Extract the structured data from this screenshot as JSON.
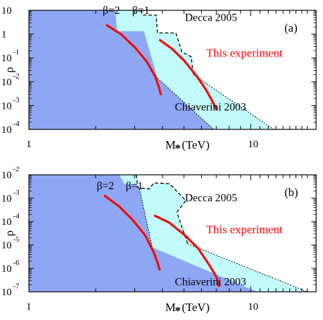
{
  "colors": {
    "excluded_blue": "#8ea7f5",
    "excluded_cyan": "#c2fbfb",
    "experiment": "#ff0000",
    "boundary": "#000000"
  },
  "chart_data": [
    {
      "type": "area",
      "panel_tag": "(a)",
      "xlabel_main": "M",
      "xlabel_sub": "*",
      "xlabel_unit": "(TeV)",
      "ylabel": "ρ",
      "x_scale": "log",
      "y_scale": "log",
      "xlim": [
        1,
        18
      ],
      "ylim_exponents": [
        -4,
        1
      ],
      "x_ticks": [
        {
          "value": 1,
          "label": "1"
        },
        {
          "value": 10,
          "label": "10"
        }
      ],
      "y_ticks": [
        {
          "exp": 1,
          "base": "10",
          "sup": ""
        },
        {
          "exp": 0,
          "base": "1",
          "sup": ""
        },
        {
          "exp": -1,
          "base": "10",
          "sup": "-1"
        },
        {
          "exp": -2,
          "base": "10",
          "sup": "-2"
        },
        {
          "exp": -3,
          "base": "10",
          "sup": "-3"
        },
        {
          "exp": -4,
          "base": "10",
          "sup": "-4"
        }
      ],
      "regions": [
        {
          "name": "Chiaverini 2003",
          "label": "Chiaverini 2003",
          "color": "#8ea7f5",
          "boundary": [
            [
              1,
              1
            ],
            [
              2.45,
              1
            ],
            [
              2.5,
              0.12
            ],
            [
              3.3,
              0.12
            ],
            [
              3.8,
              -1.85
            ],
            [
              6.8,
              -4
            ],
            [
              1,
              -4
            ]
          ]
        },
        {
          "name": "Decca 2005",
          "label": "Decca 2005",
          "color": "#c2fbfb",
          "boundary": [
            [
              2.45,
              1
            ],
            [
              3.2,
              1
            ],
            [
              3.25,
              0.8
            ],
            [
              3.75,
              0.8
            ],
            [
              3.8,
              0.05
            ],
            [
              4.6,
              0.05
            ],
            [
              4.9,
              -0.75
            ],
            [
              5.4,
              -0.95
            ],
            [
              5.5,
              -1.7
            ],
            [
              12.7,
              -4
            ],
            [
              6.8,
              -4
            ],
            [
              3.8,
              -1.85
            ],
            [
              3.3,
              0.12
            ],
            [
              2.5,
              0.12
            ]
          ]
        }
      ],
      "series": [
        {
          "name": "This experiment",
          "x": [
            2.25,
            2.6,
            3.0,
            3.4,
            3.7,
            3.85,
            3.93
          ],
          "y": [
            0.37,
            0.0,
            -0.55,
            -1.15,
            -1.75,
            -2.2,
            -2.52
          ]
        },
        {
          "name": "",
          "x": [
            3.9,
            4.4,
            5.0,
            5.7,
            6.3,
            6.75,
            7.0
          ],
          "y": [
            -0.25,
            -0.6,
            -1.1,
            -1.75,
            -2.35,
            -2.85,
            -3.15
          ]
        }
      ],
      "annotations": [
        {
          "text": "β=2",
          "x": 2.15,
          "y": 0.85
        },
        {
          "text": "β=1",
          "x": 2.92,
          "y": 0.85
        },
        {
          "text": "Decca 2005",
          "x": 5.05,
          "y": 0.55
        },
        {
          "text": "This experiment",
          "x": 6.3,
          "y": -0.95,
          "color": "#ff0000"
        },
        {
          "text": "Chiaverini 2003",
          "x": 4.55,
          "y": -3.2
        }
      ]
    },
    {
      "type": "area",
      "panel_tag": "(b)",
      "xlabel_main": "M",
      "xlabel_sub": "*",
      "xlabel_unit": "(TeV)",
      "ylabel": "ρ",
      "x_scale": "log",
      "y_scale": "log",
      "xlim": [
        1,
        18
      ],
      "ylim_exponents": [
        -7,
        -2
      ],
      "x_ticks": [
        {
          "value": 1,
          "label": "1"
        },
        {
          "value": 10,
          "label": "10"
        }
      ],
      "y_ticks": [
        {
          "exp": -2,
          "base": "10",
          "sup": "-2"
        },
        {
          "exp": -3,
          "base": "10",
          "sup": "-3"
        },
        {
          "exp": -4,
          "base": "10",
          "sup": "-4"
        },
        {
          "exp": -5,
          "base": "10",
          "sup": "-5"
        },
        {
          "exp": -6,
          "base": "10",
          "sup": "-6"
        },
        {
          "exp": -7,
          "base": "10",
          "sup": "-7"
        }
      ],
      "regions": [
        {
          "name": "Chiaverini 2003",
          "label": "Chiaverini 2003",
          "color": "#8ea7f5",
          "boundary": [
            [
              1,
              -2
            ],
            [
              2.55,
              -2
            ],
            [
              2.7,
              -2.4
            ],
            [
              3.05,
              -2.4
            ],
            [
              3.15,
              -2.6
            ],
            [
              3.6,
              -5.1
            ],
            [
              10.7,
              -7
            ],
            [
              1,
              -7
            ]
          ]
        },
        {
          "name": "Decca 2005",
          "label": "Decca 2005",
          "color": "#c2fbfb",
          "boundary": [
            [
              2.55,
              -2
            ],
            [
              3.05,
              -2
            ],
            [
              3.1,
              -2.55
            ],
            [
              3.5,
              -2.6
            ],
            [
              3.65,
              -2.35
            ],
            [
              4.3,
              -2.38
            ],
            [
              5.1,
              -3.1
            ],
            [
              4.65,
              -3.6
            ],
            [
              5.2,
              -4.95
            ],
            [
              18,
              -7
            ],
            [
              10.7,
              -7
            ],
            [
              3.6,
              -5.1
            ],
            [
              3.15,
              -2.6
            ],
            [
              3.05,
              -2.4
            ],
            [
              2.7,
              -2.4
            ]
          ]
        }
      ],
      "series": [
        {
          "name": "This experiment",
          "x": [
            2.2,
            2.55,
            2.95,
            3.35,
            3.65,
            3.8,
            3.88
          ],
          "y": [
            -2.9,
            -3.35,
            -3.95,
            -4.6,
            -5.3,
            -5.75,
            -6.05
          ]
        },
        {
          "name": "",
          "x": [
            3.7,
            4.3,
            5.0,
            5.8,
            6.5,
            7.0,
            7.2
          ],
          "y": [
            -3.75,
            -4.05,
            -4.55,
            -5.15,
            -5.85,
            -6.35,
            -6.75
          ]
        }
      ],
      "annotations": [
        {
          "text": "β=2",
          "x": 2.02,
          "y": -2.62
        },
        {
          "text": "β=1",
          "x": 2.73,
          "y": -2.62
        },
        {
          "text": "Decca 2005",
          "x": 5.05,
          "y": -3.13
        },
        {
          "text": "This experiment",
          "x": 6.3,
          "y": -4.5,
          "color": "#ff0000"
        },
        {
          "text": "Chiaverini 2003",
          "x": 4.55,
          "y": -6.72
        }
      ]
    }
  ]
}
